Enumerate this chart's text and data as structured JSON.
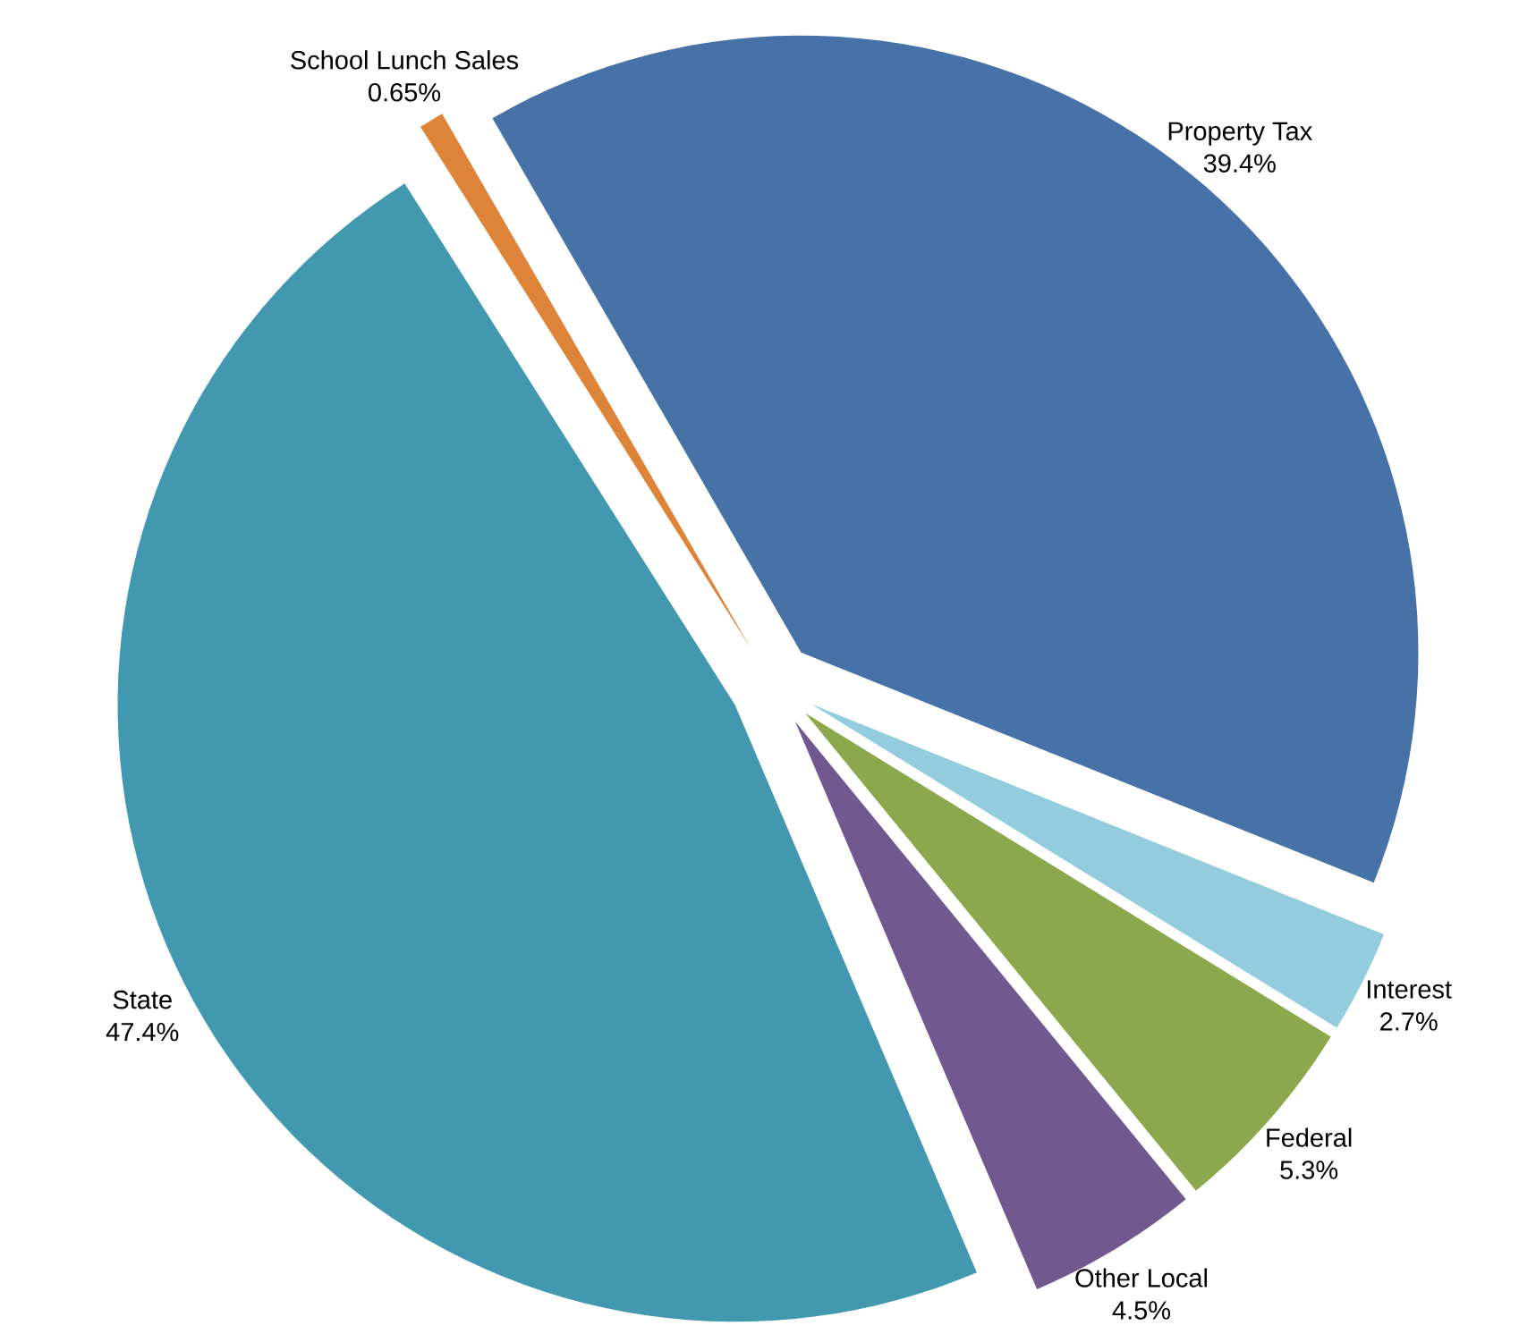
{
  "chart_data": {
    "type": "pie",
    "categories": [
      "Property Tax",
      "Interest",
      "Federal",
      "Other Local",
      "State",
      "School Lunch Sales"
    ],
    "values": [
      39.4,
      2.7,
      5.3,
      4.5,
      47.4,
      0.65
    ],
    "value_labels": [
      "39.4%",
      "2.7%",
      "5.3%",
      "4.5%",
      "47.4%",
      "0.65%"
    ],
    "colors": [
      "#4672a8",
      "#93cddd",
      "#8ba84d",
      "#71588f",
      "#4298ae",
      "#dd8439"
    ]
  }
}
